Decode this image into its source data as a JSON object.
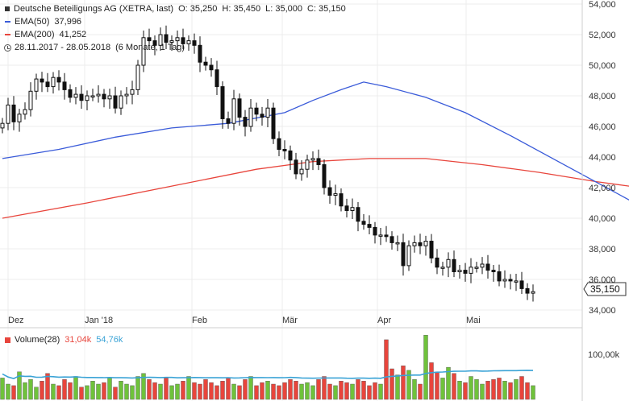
{
  "header": {
    "title": "Deutsche Beteiligungs AG (XETRA, last)",
    "o_label": "O: 35,250",
    "h_label": "H: 35,450",
    "l_label": "L: 35,000",
    "c_label": "C: 35,150",
    "ema50_label": "EMA(50)",
    "ema50_value": "37,996",
    "ema200_label": "EMA(200)",
    "ema200_value": "41,252",
    "date_range": "28.11.2017 - 28.05.2018",
    "period": "(6 Monate, 1 Tag)"
  },
  "volume_legend": {
    "label": "Volume(28)",
    "value1": "31,04k",
    "value2": "54,76k"
  },
  "colors": {
    "ema50": "#3a5bd9",
    "ema200": "#e8453c",
    "vol_up": "#6fc23b",
    "vol_down": "#e8453c",
    "vol_avg": "#3aa3d6",
    "candle": "#111111"
  },
  "chart_data": {
    "type": "candlestick",
    "y_ticks": [
      "54,000",
      "52,000",
      "50,000",
      "48,000",
      "46,000",
      "44,000",
      "42,000",
      "40,000",
      "38,000",
      "36,000",
      "34,000"
    ],
    "ylim": [
      34,
      54
    ],
    "x_ticks": [
      "Dez",
      "Jan '18",
      "Feb",
      "Mär",
      "Apr",
      "Mai"
    ],
    "last_price_label": "35,150",
    "volume_tick": "100,00k",
    "ema50_points": [
      [
        0,
        43.9
      ],
      [
        10,
        44.5
      ],
      [
        20,
        45.3
      ],
      [
        30,
        45.9
      ],
      [
        40,
        46.2
      ],
      [
        50,
        46.9
      ],
      [
        55,
        47.7
      ],
      [
        60,
        48.4
      ],
      [
        64,
        48.9
      ],
      [
        68,
        48.6
      ],
      [
        75,
        47.9
      ],
      [
        82,
        46.9
      ],
      [
        90,
        45.4
      ],
      [
        100,
        43.4
      ],
      [
        110,
        41.4
      ],
      [
        120,
        39.4
      ],
      [
        130,
        38.0
      ]
    ],
    "ema200_points": [
      [
        0,
        40.0
      ],
      [
        15,
        41.0
      ],
      [
        30,
        42.1
      ],
      [
        45,
        43.2
      ],
      [
        55,
        43.7
      ],
      [
        65,
        43.9
      ],
      [
        75,
        43.9
      ],
      [
        85,
        43.5
      ],
      [
        95,
        43.0
      ],
      [
        105,
        42.4
      ],
      [
        115,
        41.9
      ],
      [
        124,
        41.3
      ]
    ],
    "candles_close": [
      46.2,
      47.4,
      46.3,
      46.8,
      47.1,
      48.3,
      49.1,
      48.9,
      48.6,
      49.2,
      48.9,
      48.4,
      47.9,
      48.1,
      47.7,
      48.0,
      48.0,
      48.1,
      47.8,
      48.0,
      47.2,
      48.0,
      48.1,
      48.4,
      50.0,
      51.8,
      51.6,
      51.3,
      52.0,
      51.5,
      51.6,
      51.8,
      51.4,
      51.6,
      51.3,
      50.2,
      50.0,
      49.7,
      48.6,
      46.5,
      46.2,
      47.8,
      46.6,
      46.0,
      47.2,
      46.8,
      46.6,
      47.2,
      45.2,
      44.5,
      44.4,
      43.8,
      42.9,
      43.2,
      43.8,
      43.9,
      43.5,
      42.0,
      41.5,
      41.6,
      40.8,
      40.5,
      40.7,
      39.8,
      39.6,
      39.4,
      38.9,
      38.9,
      38.8,
      38.4,
      38.4,
      36.9,
      38.2,
      38.4,
      38.2,
      38.5,
      37.4,
      36.8,
      36.8,
      37.3,
      36.5,
      36.6,
      36.4,
      36.8,
      36.8,
      37.0,
      36.6,
      36.5,
      35.9,
      36.0,
      35.9,
      35.9,
      35.4,
      35.1,
      35.2
    ],
    "volume_values": [
      28,
      20,
      18,
      36,
      22,
      26,
      16,
      24,
      34,
      20,
      18,
      26,
      22,
      30,
      16,
      18,
      24,
      20,
      22,
      28,
      16,
      24,
      20,
      18,
      30,
      34,
      26,
      22,
      20,
      28,
      18,
      20,
      24,
      30,
      22,
      20,
      26,
      22,
      18,
      24,
      28,
      20,
      18,
      26,
      30,
      18,
      22,
      24,
      20,
      18,
      22,
      26,
      24,
      20,
      22,
      18,
      26,
      30,
      20,
      18,
      24,
      22,
      20,
      26,
      24,
      18,
      22,
      20,
      78,
      40,
      32,
      44,
      38,
      26,
      20,
      84,
      48,
      36,
      28,
      42,
      34,
      24,
      22,
      30,
      26,
      20,
      24,
      26,
      28,
      24,
      22,
      26,
      30,
      22,
      18
    ]
  }
}
